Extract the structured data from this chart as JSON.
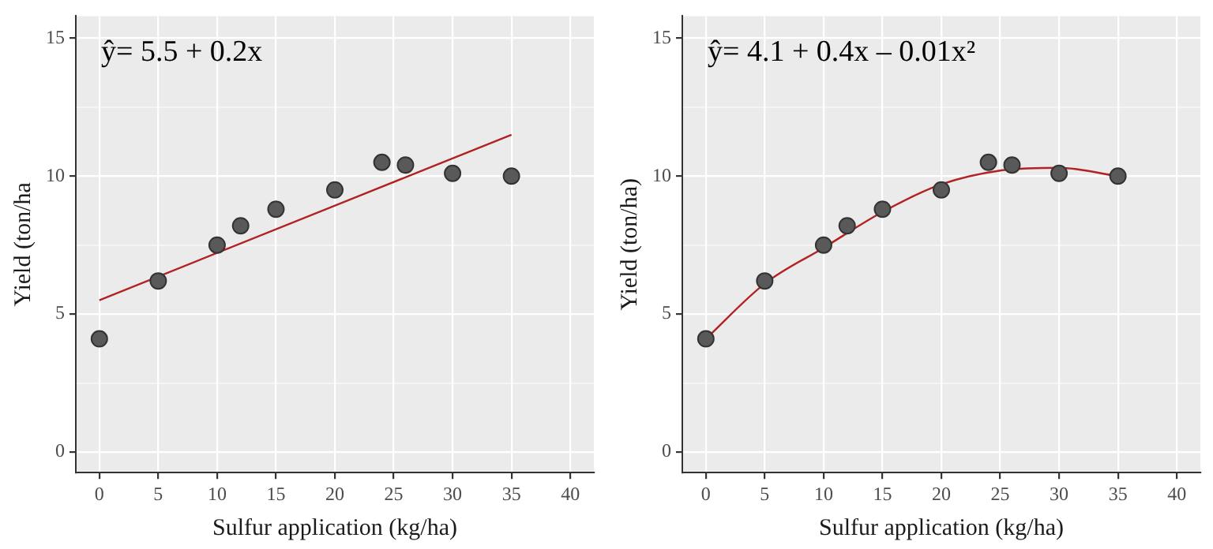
{
  "chart_data": [
    {
      "type": "scatter",
      "annotations": [
        "ŷ= 5.5 + 0.2x"
      ],
      "xlabel": "Sulfur application (kg/ha)",
      "ylabel": "Yield (ton/ha",
      "x": [
        0,
        5,
        10,
        12,
        15,
        20,
        24,
        26,
        30,
        35
      ],
      "series": [
        {
          "color": "#595959",
          "marker": "circle",
          "values": [
            4.1,
            6.2,
            7.5,
            8.2,
            8.8,
            9.5,
            10.5,
            10.4,
            10.1,
            10.0
          ]
        },
        {
          "type": "line",
          "marker": "none",
          "color": "#b22222",
          "x": [
            0,
            35
          ],
          "values": [
            5.5,
            11.5
          ]
        }
      ],
      "xlim": [
        -2,
        42
      ],
      "xticks": [
        0,
        5,
        10,
        15,
        20,
        25,
        30,
        35,
        40
      ],
      "ylim": [
        -0.75,
        15.8
      ],
      "yticks": [
        0,
        {
          "value": 2.5,
          "label": null
        },
        5,
        {
          "value": 7.5,
          "label": null
        },
        10,
        {
          "value": 12.5,
          "label": null
        },
        15
      ],
      "grid": true,
      "legend": false
    },
    {
      "type": "scatter",
      "annotations": [
        "ŷ= 4.1 + 0.4x – 0.01x²"
      ],
      "xlabel": "Sulfur application (kg/ha)",
      "ylabel": "Yield (ton/ha)",
      "x": [
        0,
        5,
        10,
        12,
        15,
        20,
        24,
        26,
        30,
        35
      ],
      "series": [
        {
          "color": "#595959",
          "marker": "circle",
          "values": [
            4.1,
            6.2,
            7.5,
            8.2,
            8.8,
            9.5,
            10.5,
            10.4,
            10.1,
            10.0
          ]
        },
        {
          "type": "line",
          "marker": "none",
          "color": "#b22222",
          "x": [
            0,
            5,
            10,
            15,
            20,
            25,
            30,
            35
          ],
          "values": [
            4.1,
            6.1,
            7.4,
            8.7,
            9.7,
            10.2,
            10.3,
            10.0
          ]
        }
      ],
      "xlim": [
        -2,
        42
      ],
      "xticks": [
        0,
        5,
        10,
        15,
        20,
        25,
        30,
        35,
        40
      ],
      "ylim": [
        -0.75,
        15.8
      ],
      "yticks": [
        0,
        {
          "value": 2.5,
          "label": null
        },
        5,
        {
          "value": 7.5,
          "label": null
        },
        10,
        {
          "value": 12.5,
          "label": null
        },
        15
      ],
      "grid": true,
      "legend": false
    }
  ]
}
